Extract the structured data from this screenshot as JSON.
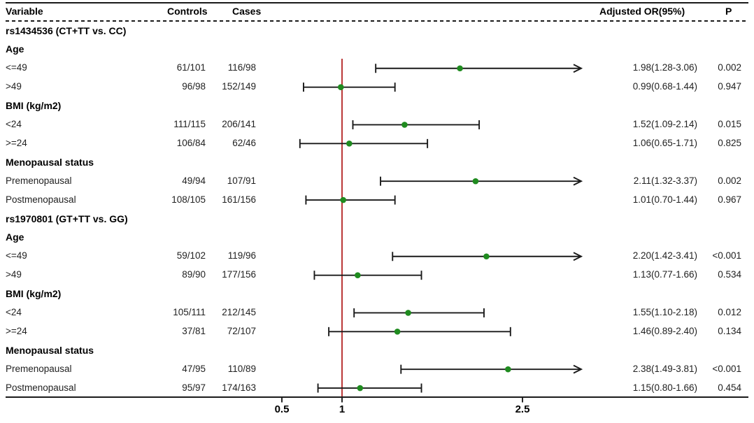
{
  "table": {
    "headers": {
      "variable": "Variable",
      "controls": "Controls",
      "cases": "Cases",
      "adjusted_or": "Adjusted OR(95%)",
      "p": "P"
    }
  },
  "chart_data": {
    "type": "forest",
    "title": "",
    "x_axis": {
      "scale": "linear",
      "tick_values": [
        0.5,
        1,
        2.5
      ],
      "tick_labels": [
        "0.5",
        "1",
        "2.5"
      ],
      "reference_line": 1,
      "arrow_note": "upper CI bounds beyond ~2.98 are clipped and drawn as arrows"
    },
    "colors": {
      "marker": "#1f8b1f",
      "reference_line": "#b22222",
      "ci_line": "#1a1a1a",
      "text": "#222222"
    },
    "rows": [
      {
        "type": "section",
        "label": "rs1434536 (CT+TT vs. CC)"
      },
      {
        "type": "subheader",
        "label": "Age"
      },
      {
        "type": "data",
        "label": "<=49",
        "controls": "61/101",
        "cases": "116/98",
        "or": 1.98,
        "ci_low": 1.28,
        "ci_high": 3.06,
        "or_text": "1.98(1.28-3.06)",
        "p": "0.002",
        "arrow": true
      },
      {
        "type": "data",
        "label": ">49",
        "controls": "96/98",
        "cases": "152/149",
        "or": 0.99,
        "ci_low": 0.68,
        "ci_high": 1.44,
        "or_text": "0.99(0.68-1.44)",
        "p": "0.947",
        "arrow": false
      },
      {
        "type": "subheader",
        "label": "BMI (kg/m2)"
      },
      {
        "type": "data",
        "label": "<24",
        "controls": "111/115",
        "cases": "206/141",
        "or": 1.52,
        "ci_low": 1.09,
        "ci_high": 2.14,
        "or_text": "1.52(1.09-2.14)",
        "p": "0.015",
        "arrow": false
      },
      {
        "type": "data",
        "label": ">=24",
        "controls": "106/84",
        "cases": "62/46",
        "or": 1.06,
        "ci_low": 0.65,
        "ci_high": 1.71,
        "or_text": "1.06(0.65-1.71)",
        "p": "0.825",
        "arrow": false
      },
      {
        "type": "subheader",
        "label": "Menopausal status"
      },
      {
        "type": "data",
        "label": "Premenopausal",
        "controls": "49/94",
        "cases": "107/91",
        "or": 2.11,
        "ci_low": 1.32,
        "ci_high": 3.37,
        "or_text": "2.11(1.32-3.37)",
        "p": "0.002",
        "arrow": true
      },
      {
        "type": "data",
        "label": "Postmenopausal",
        "controls": "108/105",
        "cases": "161/156",
        "or": 1.01,
        "ci_low": 0.7,
        "ci_high": 1.44,
        "or_text": "1.01(0.70-1.44)",
        "p": "0.967",
        "arrow": false
      },
      {
        "type": "section",
        "label": "rs1970801 (GT+TT vs. GG)"
      },
      {
        "type": "subheader",
        "label": "Age"
      },
      {
        "type": "data",
        "label": "<=49",
        "controls": "59/102",
        "cases": "119/96",
        "or": 2.2,
        "ci_low": 1.42,
        "ci_high": 3.41,
        "or_text": "2.20(1.42-3.41)",
        "p": "<0.001",
        "arrow": true
      },
      {
        "type": "data",
        "label": ">49",
        "controls": "89/90",
        "cases": "177/156",
        "or": 1.13,
        "ci_low": 0.77,
        "ci_high": 1.66,
        "or_text": "1.13(0.77-1.66)",
        "p": "0.534",
        "arrow": false
      },
      {
        "type": "subheader",
        "label": "BMI (kg/m2)"
      },
      {
        "type": "data",
        "label": "<24",
        "controls": "105/111",
        "cases": "212/145",
        "or": 1.55,
        "ci_low": 1.1,
        "ci_high": 2.18,
        "or_text": "1.55(1.10-2.18)",
        "p": "0.012",
        "arrow": false
      },
      {
        "type": "data",
        "label": ">=24",
        "controls": "37/81",
        "cases": "72/107",
        "or": 1.46,
        "ci_low": 0.89,
        "ci_high": 2.4,
        "or_text": "1.46(0.89-2.40)",
        "p": "0.134",
        "arrow": false
      },
      {
        "type": "subheader",
        "label": "Menopausal status"
      },
      {
        "type": "data",
        "label": "Premenopausal",
        "controls": "47/95",
        "cases": "110/89",
        "or": 2.38,
        "ci_low": 1.49,
        "ci_high": 3.81,
        "or_text": "2.38(1.49-3.81)",
        "p": "<0.001",
        "arrow": true
      },
      {
        "type": "data",
        "label": "Postmenopausal",
        "controls": "95/97",
        "cases": "174/163",
        "or": 1.15,
        "ci_low": 0.8,
        "ci_high": 1.66,
        "or_text": "1.15(0.80-1.66)",
        "p": "0.454",
        "arrow": false
      }
    ]
  }
}
